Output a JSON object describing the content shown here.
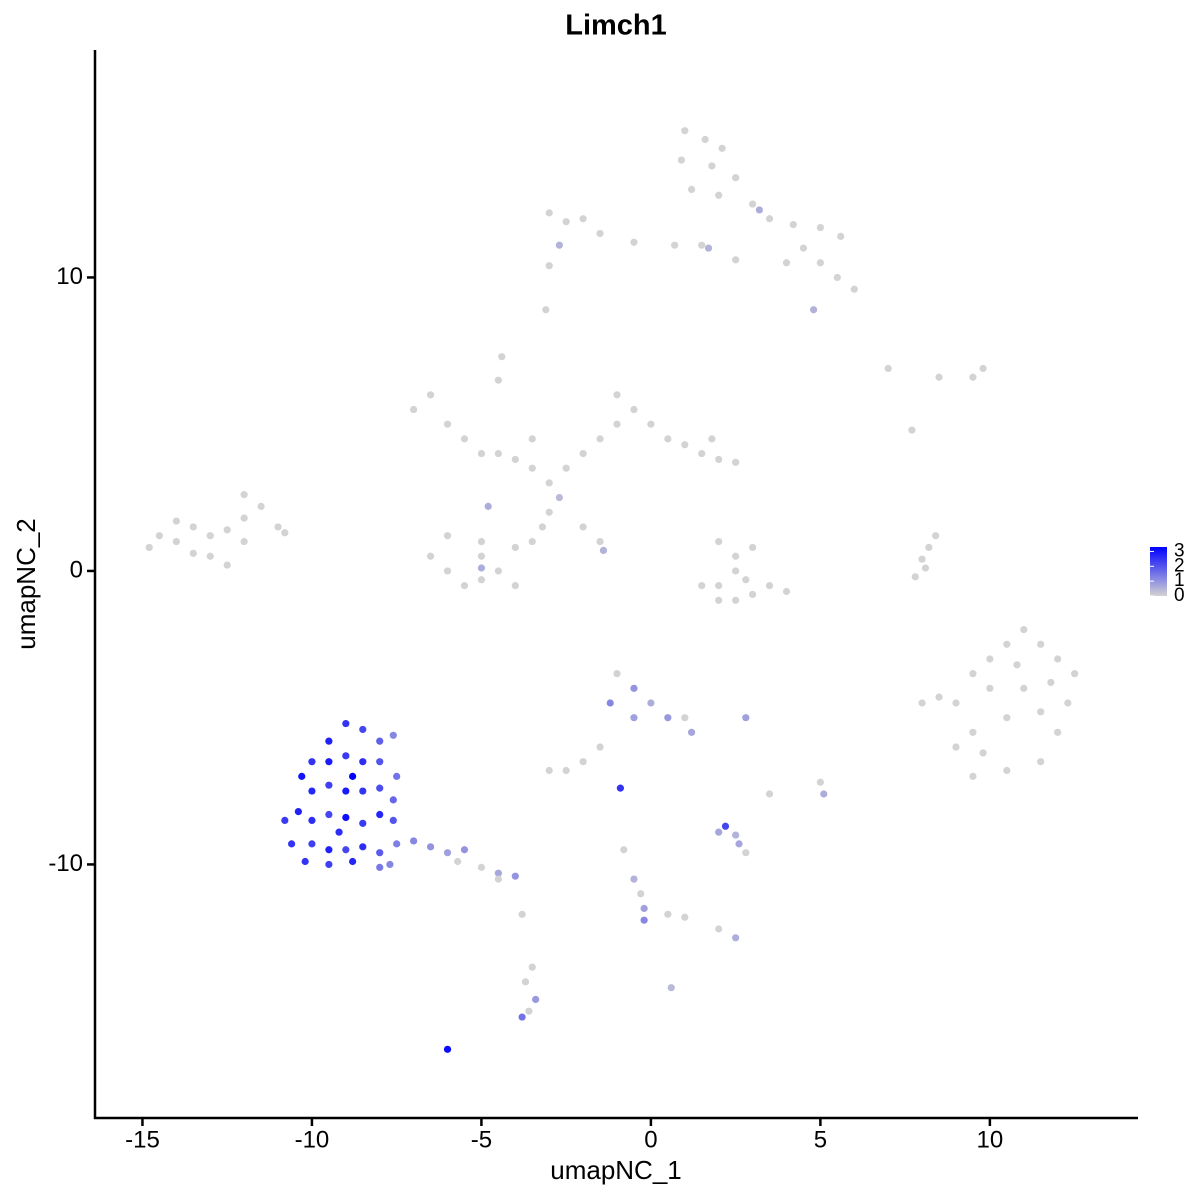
{
  "chart_data": {
    "type": "scatter",
    "title": "Limch1",
    "x_label": "umapNC_1",
    "y_label": "umapNC_2",
    "xlim": [
      -16.4,
      14.37
    ],
    "ylim": [
      -18.64,
      17.75
    ],
    "xticks": [
      -15,
      -10,
      -5,
      0,
      5,
      10
    ],
    "yticks": [
      -10,
      0,
      10
    ],
    "color_low": "#d3d3d3",
    "color_high": "#0000ff",
    "colorbar_limits": [
      0,
      3.3
    ],
    "colorbar_ticks": [
      0,
      1,
      2,
      3
    ],
    "x": [
      1,
      1.6,
      2.1,
      0.9,
      1.8,
      2.5,
      1.2,
      2,
      3,
      3.5,
      4.2,
      5,
      5.6,
      4.5,
      5,
      5.5,
      6,
      4.8,
      3.2,
      2.5,
      1.5,
      0.7,
      -0.5,
      -1.5,
      -2.5,
      -3,
      -2,
      -2.7,
      -3,
      -3.1,
      1.7,
      4,
      -7,
      -6.5,
      -6,
      -5.5,
      -5,
      -4.5,
      -4,
      -3.5,
      -3,
      -2.5,
      -2,
      -1.5,
      -1,
      -0.5,
      0,
      0.5,
      1,
      1.5,
      2,
      2.5,
      -1,
      -4.5,
      -4.4,
      -3,
      -3.2,
      -3.5,
      -4,
      -5,
      -6,
      -6.5,
      -6,
      -5.5,
      -5,
      -4.5,
      -4,
      -5,
      -2,
      -1.5,
      -1.4,
      -4.8,
      -5,
      -2.7,
      1.8,
      -3.5,
      -14.8,
      -14.5,
      -14,
      -13.5,
      -13,
      -12.5,
      -12,
      -11.5,
      -12,
      -11,
      -10.8,
      -13,
      -12.5,
      -13.5,
      -14,
      -12,
      2,
      2.5,
      3,
      2.5,
      2,
      1.5,
      2,
      2.5,
      3,
      3.5,
      4,
      2.8,
      7.8,
      8,
      8.2,
      8.4,
      8.1,
      7,
      8.5,
      9.5,
      9.8,
      7.7,
      9,
      9.5,
      10,
      10.5,
      11,
      11.5,
      12,
      12.5,
      12.3,
      12,
      11.5,
      10.5,
      9.5,
      9,
      8.5,
      8,
      10,
      11,
      10.5,
      11.5,
      9.5,
      10.8,
      9.8,
      11.8,
      -1,
      -0.5,
      -1.2,
      -0.5,
      0,
      0.5,
      1,
      1.2,
      -1.5,
      -2,
      -2.5,
      -3,
      -0.8,
      -0.5,
      -0.3,
      -0.2,
      0.5,
      1,
      2,
      2.5,
      0.6,
      2,
      2.5,
      2.8,
      3.5,
      5,
      5.1,
      2.8,
      -3.8,
      -3.5,
      -3.7,
      -3.4,
      -0.9,
      -0.2,
      2.2,
      2.6,
      -3.6,
      -3.8,
      -6,
      -7,
      -6.5,
      -6,
      -5.7,
      -5.5,
      -5,
      -4.5,
      -4,
      -4.5,
      -9,
      -8.5,
      -8,
      -7.6,
      -9.5,
      -10,
      -9.5,
      -9,
      -8.5,
      -8,
      -7.5,
      -10.3,
      -10,
      -9.5,
      -9,
      -8.5,
      -8,
      -7.6,
      -10.8,
      -10.4,
      -10,
      -9.5,
      -9,
      -8.5,
      -8,
      -7.6,
      -10.6,
      -10,
      -9.5,
      -9,
      -8.5,
      -8,
      -7.5,
      -10.2,
      -9.5,
      -8.8,
      -8,
      -7.7,
      -8.8,
      -9.2
    ],
    "y": [
      15,
      14.7,
      14.4,
      14,
      13.8,
      13.4,
      13,
      12.8,
      12.5,
      12,
      11.8,
      11.7,
      11.4,
      11,
      10.5,
      10,
      9.6,
      8.9,
      12.3,
      10.6,
      11.1,
      11.1,
      11.2,
      11.5,
      11.9,
      12.2,
      12,
      11.1,
      10.4,
      8.9,
      11,
      10.5,
      5.5,
      6,
      5,
      4.5,
      4,
      4,
      3.8,
      3.5,
      3,
      3.5,
      4,
      4.5,
      5,
      5.5,
      5,
      4.5,
      4.3,
      4,
      3.8,
      3.7,
      6,
      6.5,
      7.3,
      2,
      1.5,
      1,
      0.8,
      1,
      1.2,
      0.5,
      0,
      -0.5,
      -0.3,
      0,
      -0.5,
      0.5,
      1.5,
      1,
      0.7,
      2.2,
      0.1,
      2.5,
      4.5,
      4.5,
      0.8,
      1.2,
      1,
      1.5,
      1.2,
      1.4,
      1.8,
      2.2,
      2.6,
      1.5,
      1.3,
      0.5,
      0.2,
      0.6,
      1.7,
      1,
      1,
      0.5,
      0.8,
      0,
      -0.5,
      -0.5,
      -1,
      -1,
      -0.8,
      -0.5,
      -0.7,
      -0.3,
      -0.2,
      0.4,
      0.8,
      1.2,
      0.1,
      6.9,
      6.6,
      6.6,
      6.9,
      4.8,
      -4.5,
      -3.5,
      -3,
      -2.5,
      -2,
      -2.5,
      -3,
      -3.5,
      -4.5,
      -5.5,
      -6.5,
      -6.8,
      -7,
      -6,
      -4.3,
      -4.5,
      -4,
      -4,
      -5,
      -4.8,
      -5.5,
      -3.2,
      -6.2,
      -3.8,
      -3.5,
      -4,
      -4.5,
      -5,
      -4.5,
      -5,
      -5,
      -5.5,
      -6,
      -6.5,
      -6.8,
      -6.8,
      -9.5,
      -10.5,
      -11,
      -11.5,
      -11.7,
      -11.8,
      -12.2,
      -12.5,
      -14.2,
      -8.9,
      -9,
      -9.6,
      -7.6,
      -7.2,
      -7.6,
      -5,
      -11.7,
      -13.5,
      -14,
      -14.6,
      -7.4,
      -11.9,
      -8.7,
      -9.3,
      -15,
      -15.2,
      -16.3,
      -9.2,
      -9.4,
      -9.6,
      -9.9,
      -9.5,
      -10.1,
      -10.3,
      -10.4,
      -10.5,
      -5.2,
      -5.4,
      -5.8,
      -5.6,
      -5.8,
      -6.5,
      -6.5,
      -6.3,
      -6.5,
      -6.5,
      -7,
      -7,
      -7.5,
      -7.3,
      -7.5,
      -7.5,
      -7.4,
      -7.8,
      -8.5,
      -8.2,
      -8.5,
      -8.3,
      -8.4,
      -8.6,
      -8.3,
      -8.5,
      -9.3,
      -9.3,
      -9.5,
      -9.5,
      -9.4,
      -9.6,
      -9.3,
      -9.9,
      -10,
      -9.9,
      -10.1,
      -10,
      -7,
      -8.9
    ],
    "values": [
      0,
      0,
      0,
      0,
      0,
      0,
      0,
      0,
      0,
      0,
      0,
      0,
      0,
      0,
      0,
      0,
      0,
      0.5,
      0.6,
      0,
      0,
      0,
      0,
      0,
      0,
      0,
      0,
      0.5,
      0,
      0,
      0.5,
      0,
      0,
      0,
      0,
      0,
      0,
      0,
      0,
      0,
      0,
      0,
      0,
      0,
      0,
      0,
      0,
      0,
      0,
      0,
      0,
      0,
      0,
      0,
      0,
      0,
      0,
      0,
      0,
      0,
      0,
      0,
      0,
      0,
      0,
      0,
      0,
      0,
      0,
      0,
      0.5,
      0.6,
      0.6,
      0.4,
      0,
      0,
      0,
      0,
      0,
      0,
      0,
      0,
      0,
      0,
      0,
      0,
      0,
      0,
      0,
      0,
      0,
      0,
      0,
      0,
      0,
      0,
      0,
      0,
      0,
      0,
      0,
      0,
      0,
      0,
      0,
      0,
      0,
      0,
      0,
      0,
      0,
      0,
      0,
      0,
      0,
      0,
      0,
      0,
      0,
      0,
      0,
      0,
      0,
      0,
      0,
      0,
      0,
      0,
      0,
      0,
      0,
      0,
      0,
      0,
      0,
      0,
      0,
      0,
      0,
      1,
      1.2,
      0.8,
      0.6,
      0.9,
      0,
      0.7,
      0,
      0,
      0,
      0,
      0,
      0.5,
      0,
      0.8,
      0,
      0,
      0,
      0.6,
      0.4,
      0.7,
      0.5,
      0,
      0,
      0,
      0.6,
      0.8,
      0,
      0,
      0,
      0.9,
      2.5,
      1.2,
      2.2,
      0.7,
      0,
      1.5,
      3.1,
      1.2,
      1,
      0.8,
      0,
      1,
      0,
      0.7,
      1,
      0,
      2.5,
      2.2,
      1.8,
      1.2,
      2.8,
      2.5,
      2.9,
      2.4,
      2.6,
      2,
      1.5,
      3,
      2.7,
      2.3,
      2.9,
      2.5,
      2.1,
      1.7,
      2.4,
      2.8,
      2.6,
      2.2,
      3.1,
      2.4,
      2.7,
      2,
      2.5,
      2.3,
      2.8,
      2.2,
      2.6,
      1.9,
      1.3,
      2.5,
      2.3,
      2.7,
      1.4,
      1.2,
      3.3,
      2.6
    ]
  }
}
